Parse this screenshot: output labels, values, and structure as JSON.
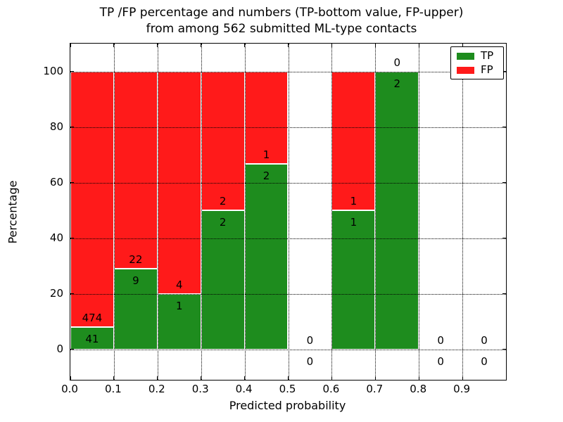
{
  "figure": {
    "title_lines": [
      "TP /FP percentage and numbers (TP-bottom value, FP-upper)",
      "from among 562 submitted ML-type contacts"
    ]
  },
  "chart_data": {
    "type": "bar",
    "stacked": true,
    "normalized_to_percent": true,
    "title": "TP /FP percentage and numbers (TP-bottom value, FP-upper) from among 562 submitted ML-type contacts",
    "xlabel": "Predicted probability",
    "ylabel": "Percentage",
    "xlim": [
      0.0,
      1.0
    ],
    "ylim": [
      -11,
      110
    ],
    "bin_width": 0.1,
    "xticks": [
      "0.0",
      "0.1",
      "0.2",
      "0.3",
      "0.4",
      "0.5",
      "0.6",
      "0.7",
      "0.8",
      "0.9"
    ],
    "yticks": [
      0,
      20,
      40,
      60,
      80,
      100
    ],
    "grid": "dotted, drawn above bars",
    "legend": {
      "position": "upper-right",
      "entries": [
        {
          "label": "TP",
          "color": "#1e8c1e"
        },
        {
          "label": "FP",
          "color": "#ff1a1a"
        }
      ]
    },
    "colors": {
      "tp": "#1e8c1e",
      "fp": "#ff1a1a",
      "bar_edge": "#ffffff"
    },
    "bins": [
      {
        "x_start": 0.0,
        "tp": 41,
        "fp": 474,
        "tp_pct": 7.96
      },
      {
        "x_start": 0.1,
        "tp": 9,
        "fp": 22,
        "tp_pct": 29.03
      },
      {
        "x_start": 0.2,
        "tp": 1,
        "fp": 4,
        "tp_pct": 20.0
      },
      {
        "x_start": 0.3,
        "tp": 2,
        "fp": 2,
        "tp_pct": 50.0
      },
      {
        "x_start": 0.4,
        "tp": 2,
        "fp": 1,
        "tp_pct": 66.67
      },
      {
        "x_start": 0.5,
        "tp": 0,
        "fp": 0,
        "tp_pct": 0
      },
      {
        "x_start": 0.6,
        "tp": 1,
        "fp": 1,
        "tp_pct": 50.0
      },
      {
        "x_start": 0.7,
        "tp": 2,
        "fp": 0,
        "tp_pct": 100.0
      },
      {
        "x_start": 0.8,
        "tp": 0,
        "fp": 0,
        "tp_pct": 0
      },
      {
        "x_start": 0.9,
        "tp": 0,
        "fp": 0,
        "tp_pct": 0
      }
    ],
    "total_contacts": 562
  }
}
